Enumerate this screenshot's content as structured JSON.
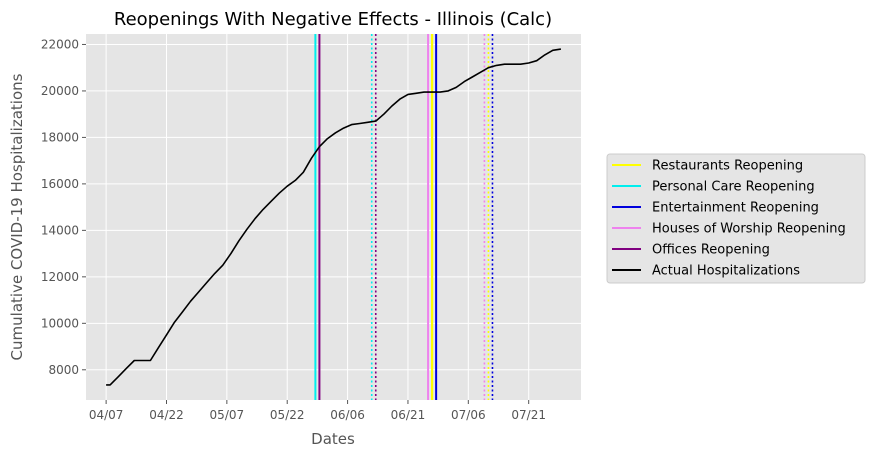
{
  "chart_data": {
    "type": "line",
    "title": "Reopenings With Negative Effects - Illinois (Calc)",
    "xlabel": "Dates",
    "ylabel": "Cumulative COVID-19 Hospitalizations",
    "x_ticks": [
      "04/07",
      "04/22",
      "05/07",
      "05/22",
      "06/06",
      "06/21",
      "07/06",
      "07/21"
    ],
    "y_ticks": [
      8000,
      10000,
      12000,
      14000,
      16000,
      18000,
      20000,
      22000
    ],
    "y_tick_labels": [
      "8000",
      "10000",
      "12000",
      "14000",
      "16000",
      "18000",
      "20000",
      "22000"
    ],
    "xlim": [
      "2020-04-02",
      "2020-08-03"
    ],
    "ylim": [
      6700,
      22450
    ],
    "grid": true,
    "legend_position": "right",
    "legend": [
      {
        "label": "Restaurants Reopening",
        "color": "#ffff00",
        "style": "solid"
      },
      {
        "label": "Personal Care Reopening",
        "color": "#00eeee",
        "style": "solid"
      },
      {
        "label": "Entertainment Reopening",
        "color": "#0000dd",
        "style": "solid"
      },
      {
        "label": "Houses of Worship Reopening",
        "color": "#ee82ee",
        "style": "solid"
      },
      {
        "label": "Offices Reopening",
        "color": "#800080",
        "style": "solid"
      },
      {
        "label": "Actual Hospitalizations",
        "color": "#000000",
        "style": "solid"
      }
    ],
    "vlines": [
      {
        "name": "Personal Care Reopening",
        "date": "2020-05-29",
        "color": "#00eeee",
        "style": "solid"
      },
      {
        "name": "Offices Reopening",
        "date": "2020-05-30",
        "color": "#800080",
        "style": "solid"
      },
      {
        "name": "Personal Care Reopening",
        "date": "2020-06-12",
        "color": "#00eeee",
        "style": "dotted"
      },
      {
        "name": "Offices Reopening",
        "date": "2020-06-13",
        "color": "#800080",
        "style": "dotted"
      },
      {
        "name": "Houses of Worship Reopening",
        "date": "2020-06-26",
        "color": "#ee82ee",
        "style": "solid"
      },
      {
        "name": "Restaurants Reopening",
        "date": "2020-06-27",
        "color": "#ffff00",
        "style": "solid"
      },
      {
        "name": "Restaurants Reopening",
        "date": "2020-06-27",
        "color": "#ffff00",
        "style": "solid"
      },
      {
        "name": "Entertainment Reopening",
        "date": "2020-06-28",
        "color": "#0000dd",
        "style": "solid"
      },
      {
        "name": "Houses of Worship Reopening",
        "date": "2020-07-10",
        "color": "#ee82ee",
        "style": "dotted"
      },
      {
        "name": "Restaurants Reopening",
        "date": "2020-07-11",
        "color": "#ffff00",
        "style": "dotted"
      },
      {
        "name": "Entertainment Reopening",
        "date": "2020-07-12",
        "color": "#0000dd",
        "style": "dotted"
      }
    ],
    "series": [
      {
        "name": "Actual Hospitalizations",
        "color": "#000000",
        "x": [
          "2020-04-07",
          "2020-04-08",
          "2020-04-10",
          "2020-04-12",
          "2020-04-14",
          "2020-04-16",
          "2020-04-18",
          "2020-04-20",
          "2020-04-22",
          "2020-04-24",
          "2020-04-26",
          "2020-04-28",
          "2020-04-30",
          "2020-05-02",
          "2020-05-04",
          "2020-05-06",
          "2020-05-08",
          "2020-05-10",
          "2020-05-12",
          "2020-05-14",
          "2020-05-16",
          "2020-05-18",
          "2020-05-20",
          "2020-05-22",
          "2020-05-24",
          "2020-05-26",
          "2020-05-28",
          "2020-05-30",
          "2020-06-01",
          "2020-06-03",
          "2020-06-05",
          "2020-06-07",
          "2020-06-09",
          "2020-06-11",
          "2020-06-13",
          "2020-06-15",
          "2020-06-17",
          "2020-06-19",
          "2020-06-21",
          "2020-06-23",
          "2020-06-25",
          "2020-06-27",
          "2020-06-29",
          "2020-07-01",
          "2020-07-03",
          "2020-07-05",
          "2020-07-07",
          "2020-07-09",
          "2020-07-11",
          "2020-07-13",
          "2020-07-15",
          "2020-07-17",
          "2020-07-19",
          "2020-07-21",
          "2020-07-23",
          "2020-07-25",
          "2020-07-27",
          "2020-07-29"
        ],
        "y": [
          7350,
          7350,
          7700,
          8050,
          8400,
          8400,
          8400,
          8950,
          9500,
          10050,
          10500,
          10950,
          11350,
          11750,
          12150,
          12500,
          13000,
          13550,
          14050,
          14500,
          14900,
          15250,
          15600,
          15900,
          16150,
          16500,
          17100,
          17600,
          17950,
          18200,
          18400,
          18550,
          18600,
          18650,
          18700,
          19000,
          19350,
          19650,
          19850,
          19900,
          19950,
          19950,
          19950,
          20000,
          20150,
          20400,
          20600,
          20800,
          21000,
          21100,
          21150,
          21150,
          21150,
          21200,
          21300,
          21550,
          21750,
          21800
        ]
      }
    ]
  }
}
